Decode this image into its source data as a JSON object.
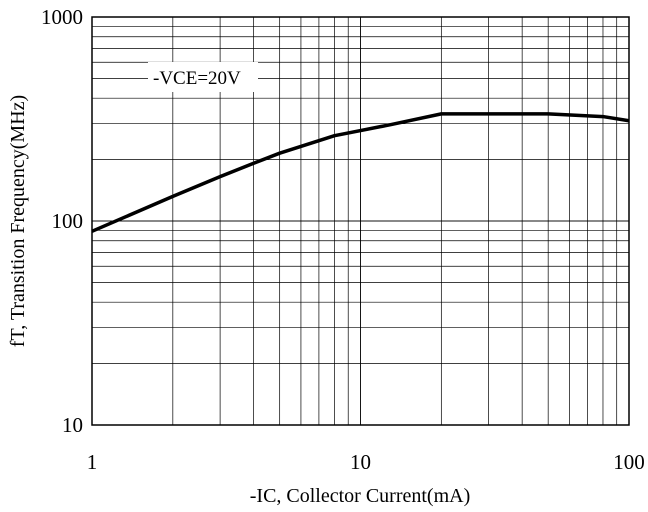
{
  "chart_data": {
    "type": "line",
    "title": "",
    "xlabel": "-IC, Collector Current(mA)",
    "ylabel": "fT, Transition Frequency(MHz)",
    "x_scale": "log",
    "y_scale": "log",
    "xlim": [
      1,
      100
    ],
    "ylim": [
      10,
      1000
    ],
    "x_ticks": [
      "1",
      "10",
      "100"
    ],
    "y_ticks": [
      "10",
      "100",
      "1000"
    ],
    "grid": true,
    "annotation": "-VCE=20V",
    "series": [
      {
        "name": "",
        "color": "#000000",
        "x": [
          1,
          2,
          3,
          4,
          5,
          8,
          13,
          20,
          30,
          50,
          80,
          100
        ],
        "y": [
          89,
          132,
          165,
          192,
          215,
          262,
          297,
          335,
          335,
          335,
          325,
          310
        ]
      }
    ]
  }
}
